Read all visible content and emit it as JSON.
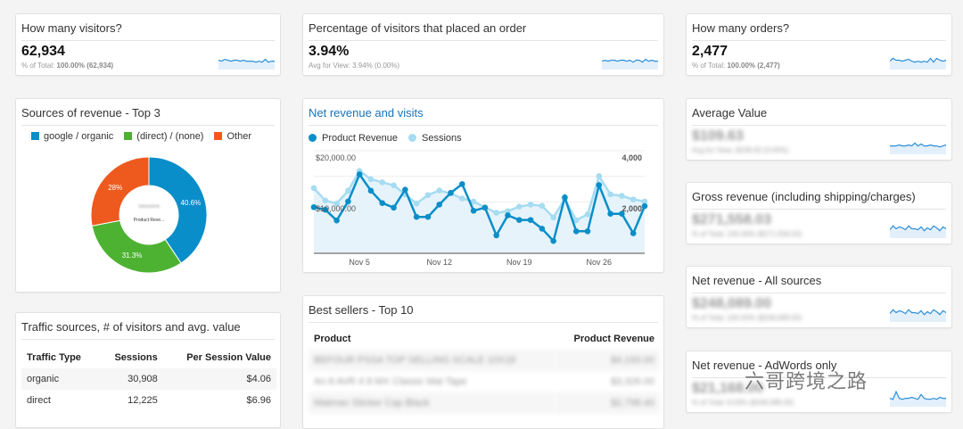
{
  "visitors": {
    "title": "How many visitors?",
    "value": "62,934",
    "sub_label": "% of Total:",
    "sub_value": "100.00% (62,934)",
    "spark": [
      6,
      5,
      7,
      6,
      5,
      6,
      6,
      5,
      6,
      5,
      5,
      5,
      4,
      5,
      4,
      7,
      4,
      5,
      5
    ]
  },
  "conversion": {
    "title": "Percentage of visitors that placed an order",
    "value": "3.94%",
    "sub_label": "Avg for View:",
    "sub_value": "3.94% (0.00%)",
    "spark": [
      5,
      6,
      5,
      6,
      6,
      5,
      6,
      6,
      5,
      6,
      4,
      6,
      6,
      4,
      7,
      5,
      6,
      5,
      5
    ]
  },
  "orders": {
    "title": "How many orders?",
    "value": "2,477",
    "sub_label": "% of Total:",
    "sub_value": "100.00% (2,477)",
    "spark": [
      5,
      8,
      6,
      6,
      5,
      6,
      7,
      5,
      4,
      5,
      4,
      5,
      4,
      8,
      4,
      8,
      6,
      5,
      6
    ]
  },
  "average_value": {
    "title": "Average Value",
    "value": "$109.63",
    "sub": "Avg for View: $109.63 (0.00%)",
    "spark": [
      5,
      5,
      5,
      6,
      5,
      5,
      6,
      5,
      8,
      5,
      7,
      5,
      5,
      6,
      5,
      5,
      4,
      5,
      6
    ]
  },
  "gross_revenue": {
    "title": "Gross revenue (including shipping/charges)",
    "value": "$271,558.03",
    "sub": "% of Total: 100.00% ($271,558.03)",
    "spark": [
      5,
      9,
      6,
      8,
      7,
      5,
      9,
      6,
      6,
      5,
      8,
      4,
      7,
      5,
      9,
      7,
      4,
      8,
      6
    ]
  },
  "net_revenue_all": {
    "title": "Net revenue - All sources",
    "value": "$248,089.00",
    "sub": "% of Total: 100.00% ($248,089.00)",
    "spark": [
      5,
      9,
      6,
      8,
      7,
      5,
      9,
      6,
      6,
      5,
      8,
      4,
      7,
      5,
      9,
      7,
      4,
      8,
      6
    ]
  },
  "net_revenue_adwords": {
    "title": "Net revenue - AdWords only",
    "value": "$21,168.00",
    "sub": "% of Total: 8.53% ($248,089.00)",
    "spark": [
      5,
      4,
      12,
      5,
      4,
      5,
      5,
      6,
      5,
      4,
      9,
      5,
      4,
      4,
      5,
      4,
      6,
      5,
      5
    ]
  },
  "sources": {
    "title": "Sources of revenue - Top 3",
    "center_title": "Sessions",
    "center_label": "Product Reve...",
    "chart_data": {
      "type": "pie",
      "categories": [
        "google / organic",
        "(direct) / (none)",
        "Other"
      ],
      "values": [
        40.6,
        31.3,
        28
      ],
      "labels": [
        "40.6%",
        "31.3%",
        "28%"
      ],
      "colors": [
        "#0a8ec9",
        "#4db232",
        "#ee5a1e"
      ]
    }
  },
  "net_chart": {
    "title": "Net revenue and visits",
    "chart_data": {
      "type": "line",
      "title": "Net revenue and visits",
      "x": [
        "Nov 1",
        "Nov 2",
        "Nov 3",
        "Nov 4",
        "Nov 5",
        "Nov 6",
        "Nov 7",
        "Nov 8",
        "Nov 9",
        "Nov 10",
        "Nov 11",
        "Nov 12",
        "Nov 13",
        "Nov 14",
        "Nov 15",
        "Nov 16",
        "Nov 17",
        "Nov 18",
        "Nov 19",
        "Nov 20",
        "Nov 21",
        "Nov 22",
        "Nov 23",
        "Nov 24",
        "Nov 25",
        "Nov 26",
        "Nov 27",
        "Nov 28",
        "Nov 29",
        "Nov 30"
      ],
      "x_ticks": [
        "Nov 5",
        "Nov 12",
        "Nov 19",
        "Nov 26"
      ],
      "series": [
        {
          "name": "Product Revenue",
          "axis": "left",
          "color": "#0a8ec9",
          "values": [
            9000,
            8500,
            6400,
            10100,
            15400,
            12200,
            9800,
            8900,
            12400,
            7100,
            7100,
            9500,
            11800,
            13500,
            8300,
            8900,
            3500,
            7400,
            6500,
            6500,
            4800,
            2400,
            10900,
            4300,
            4300,
            13300,
            7700,
            7700,
            3900,
            9200
          ]
        },
        {
          "name": "Sessions",
          "axis": "right",
          "color": "#a6dcf2",
          "values": [
            2540,
            2060,
            1940,
            2440,
            3210,
            2890,
            2770,
            2650,
            2300,
            1940,
            2270,
            2450,
            2330,
            2140,
            2020,
            1790,
            1580,
            1640,
            1820,
            1900,
            1850,
            1400,
            2120,
            1290,
            1520,
            3010,
            2300,
            2240,
            2100,
            2020
          ]
        }
      ],
      "y_left": {
        "ylim": [
          0,
          20000
        ],
        "ticks": [
          "$20,000.00",
          "$10,000.00"
        ]
      },
      "y_right": {
        "ylim": [
          0,
          4000
        ],
        "ticks": [
          "4,000",
          "2,000"
        ]
      },
      "grid": true,
      "legend": "top-left"
    }
  },
  "traffic": {
    "title": "Traffic sources, # of visitors and avg. value",
    "headers": [
      "Traffic Type",
      "Sessions",
      "Per Session Value"
    ],
    "rows": [
      [
        "organic",
        "30,908",
        "$4.06"
      ],
      [
        "direct",
        "12,225",
        "$6.96"
      ]
    ]
  },
  "best_sellers": {
    "title": "Best sellers - Top 10",
    "headers": [
      "Product",
      "Product Revenue"
    ],
    "rows": [
      [
        "BEFOUR PSSA TOP SELLING SCALE 10X18",
        "$4,193.00"
      ],
      [
        "An 8 AVR 4 8 MX Classic Mat Tape",
        "$3,326.00"
      ],
      [
        "Matman Sticker Cap Black",
        "$2,798.40"
      ]
    ]
  },
  "watermark": "六哥跨境之路"
}
